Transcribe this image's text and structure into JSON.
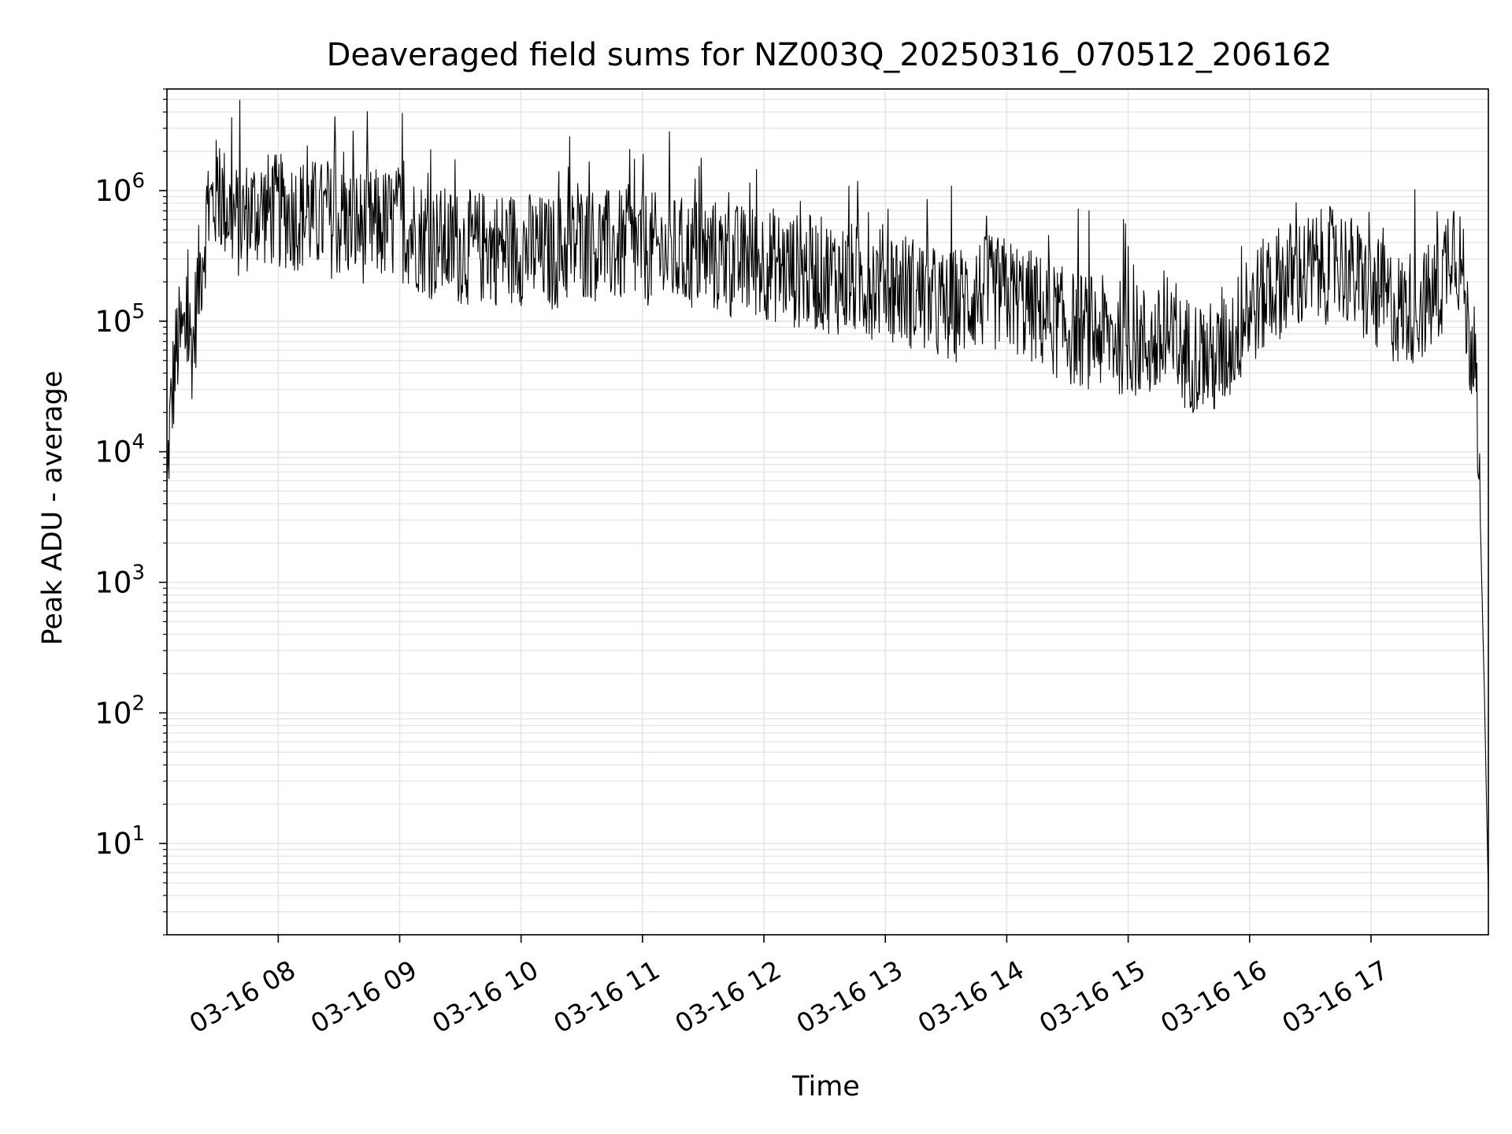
{
  "chart_data": {
    "type": "line",
    "title": "Deaveraged field sums for NZ003Q_20250316_070512_206162",
    "xlabel": "Time",
    "ylabel": "Peak ADU - average",
    "yscale": "log",
    "grid": true,
    "x_tick_labels": [
      "03-16 08",
      "03-16 09",
      "03-16 10",
      "03-16 11",
      "03-16 12",
      "03-16 13",
      "03-16 14",
      "03-16 15",
      "03-16 16",
      "03-16 17"
    ],
    "y_tick_labels": [
      {
        "base": "10",
        "exp": "1"
      },
      {
        "base": "10",
        "exp": "2"
      },
      {
        "base": "10",
        "exp": "3"
      },
      {
        "base": "10",
        "exp": "4"
      },
      {
        "base": "10",
        "exp": "5"
      },
      {
        "base": "10",
        "exp": "6"
      }
    ],
    "xlim": [
      "2025-03-16 07:05",
      "2025-03-16 17:58"
    ],
    "ylim": [
      2,
      6000000
    ],
    "line_color": "#000000",
    "grid_color": "#e6e6e6",
    "series": [
      {
        "x": [
          "2025-03-16 07:05",
          "2025-03-16 07:06",
          "2025-03-16 07:08",
          "2025-03-16 07:10",
          "2025-03-16 07:12",
          "2025-03-16 07:15",
          "2025-03-16 07:18",
          "2025-03-16 07:20",
          "2025-03-16 07:25",
          "2025-03-16 07:30",
          "2025-03-16 07:35",
          "2025-03-16 07:40",
          "2025-03-16 07:45",
          "2025-03-16 07:50",
          "2025-03-16 08:00",
          "2025-03-16 08:15",
          "2025-03-16 08:30",
          "2025-03-16 08:45",
          "2025-03-16 09:00",
          "2025-03-16 09:15",
          "2025-03-16 09:30",
          "2025-03-16 09:45",
          "2025-03-16 10:00",
          "2025-03-16 10:15",
          "2025-03-16 10:30",
          "2025-03-16 10:45",
          "2025-03-16 11:00",
          "2025-03-16 11:15",
          "2025-03-16 11:30",
          "2025-03-16 11:45",
          "2025-03-16 12:00",
          "2025-03-16 12:15",
          "2025-03-16 12:30",
          "2025-03-16 12:45",
          "2025-03-16 13:00",
          "2025-03-16 13:15",
          "2025-03-16 13:30",
          "2025-03-16 13:45",
          "2025-03-16 14:00",
          "2025-03-16 14:15",
          "2025-03-16 14:30",
          "2025-03-16 14:45",
          "2025-03-16 15:00",
          "2025-03-16 15:15",
          "2025-03-16 15:30",
          "2025-03-16 15:45",
          "2025-03-16 16:00",
          "2025-03-16 16:15",
          "2025-03-16 16:30",
          "2025-03-16 16:45",
          "2025-03-16 17:00",
          "2025-03-16 17:15",
          "2025-03-16 17:30",
          "2025-03-16 17:35",
          "2025-03-16 17:40",
          "2025-03-16 17:45",
          "2025-03-16 17:48",
          "2025-03-16 17:50",
          "2025-03-16 17:52",
          "2025-03-16 17:54",
          "2025-03-16 17:56",
          "2025-03-16 17:58"
        ],
        "values": [
          5000,
          15000,
          40000,
          80000,
          90000,
          100000,
          80000,
          200000,
          800000,
          1200000,
          900000,
          700000,
          800000,
          900000,
          850000,
          800000,
          700000,
          650000,
          700000,
          500000,
          450000,
          450000,
          450000,
          400000,
          500000,
          450000,
          450000,
          400000,
          400000,
          350000,
          350000,
          300000,
          280000,
          250000,
          250000,
          200000,
          150000,
          200000,
          200000,
          150000,
          110000,
          100000,
          90000,
          80000,
          70000,
          60000,
          150000,
          250000,
          300000,
          350000,
          200000,
          150000,
          180000,
          250000,
          600000,
          300000,
          100000,
          80000,
          70000,
          3000,
          150,
          4
        ]
      }
    ]
  }
}
